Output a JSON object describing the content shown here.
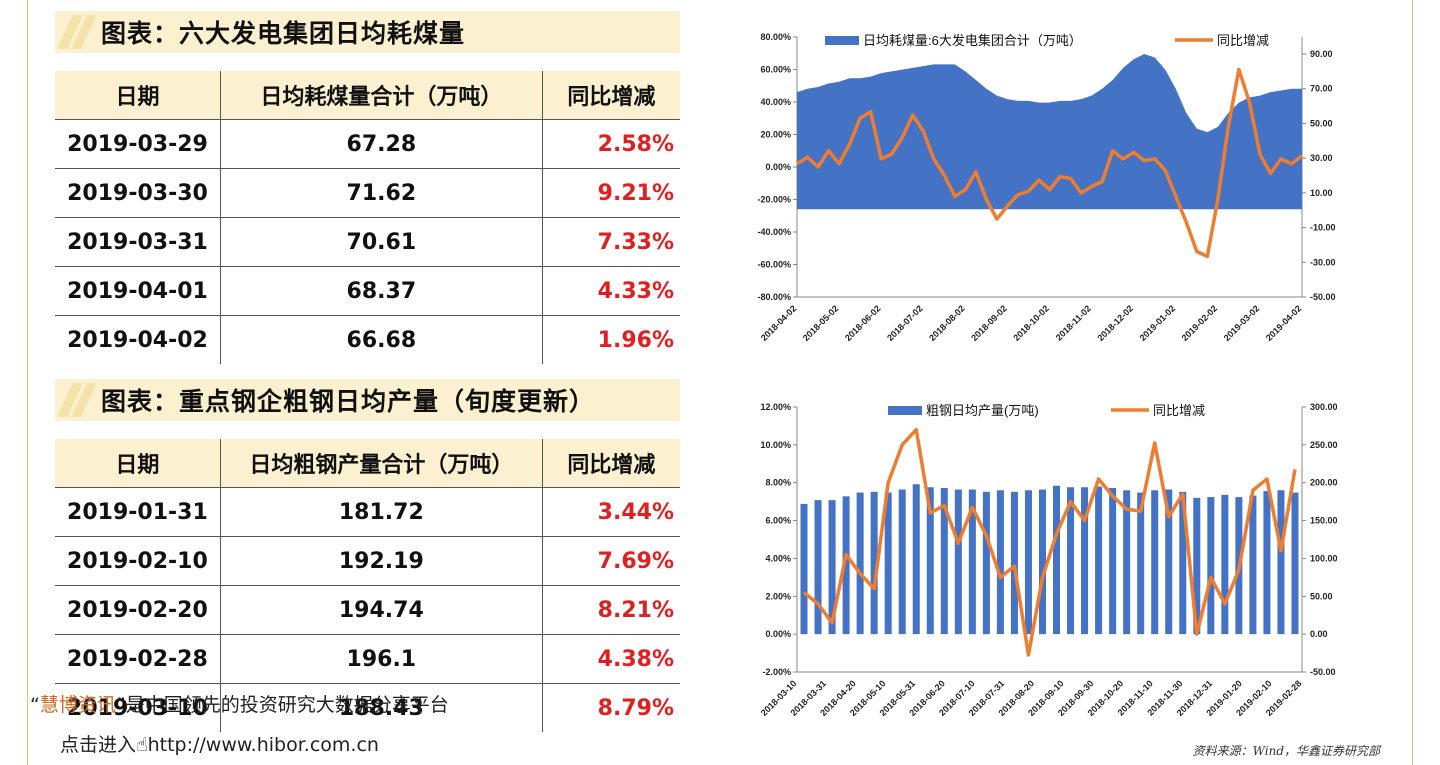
{
  "section1": {
    "title": "图表：六大发电集团日均耗煤量",
    "headers": [
      "日期",
      "日均耗煤量合计（万吨）",
      "同比增减"
    ],
    "rows": [
      [
        "2019-03-29",
        "67.28",
        "2.58%"
      ],
      [
        "2019-03-30",
        "71.62",
        "9.21%"
      ],
      [
        "2019-03-31",
        "70.61",
        "7.33%"
      ],
      [
        "2019-04-01",
        "68.37",
        "4.33%"
      ],
      [
        "2019-04-02",
        "66.68",
        "1.96%"
      ]
    ]
  },
  "section2": {
    "title": "图表：重点钢企粗钢日均产量（旬度更新）",
    "headers": [
      "日期",
      "日均粗钢产量合计（万吨）",
      "同比增减"
    ],
    "rows": [
      [
        "2019-01-31",
        "181.72",
        "3.44%"
      ],
      [
        "2019-02-10",
        "192.19",
        "7.69%"
      ],
      [
        "2019-02-20",
        "194.74",
        "8.21%"
      ],
      [
        "2019-02-28",
        "196.1",
        "4.38%"
      ],
      [
        "2019-03-10",
        "188.43",
        "8.79%"
      ]
    ]
  },
  "footer": {
    "quote_open": "“",
    "brand": "慧博资讯",
    "tagline": "”是中国领先的投资研究大数据分享平台",
    "link_prefix": "点击进入",
    "link": "http://www.hibor.com.cn",
    "source": "资料来源：Wind，华鑫证券研究部"
  },
  "colors": {
    "bar": "#4472c4",
    "line": "#ed7d31",
    "red_text": "#e02020",
    "title_bg": "#fbf0cf"
  },
  "chart_data": [
    {
      "type": "area",
      "legend": [
        "日均耗煤量:6大发电集团合计（万吨）",
        "同比增减"
      ],
      "legend_position": "top",
      "x_ticks": [
        "2018-04-02",
        "2018-05-02",
        "2018-06-02",
        "2018-07-02",
        "2018-08-02",
        "2018-09-02",
        "2018-10-02",
        "2018-11-02",
        "2018-12-02",
        "2019-01-02",
        "2019-02-02",
        "2019-03-02",
        "2019-04-02"
      ],
      "y_left_ticks": [
        "80.00%",
        "60.00%",
        "40.00%",
        "20.00%",
        "0.00%",
        "-20.00%",
        "-40.00%",
        "-60.00%",
        "-80.00%"
      ],
      "y_left_range": [
        -0.8,
        0.8
      ],
      "y_right_ticks": [
        "90.00",
        "70.00",
        "50.00",
        "30.00",
        "10.00",
        "-10.00",
        "-30.00",
        "-50.00"
      ],
      "y_right_range": [
        -50,
        90
      ],
      "series": [
        {
          "name": "日均耗煤量:6大发电集团合计（万吨）",
          "axis": "right",
          "values": [
            68,
            70,
            71,
            73,
            74,
            76,
            76,
            77,
            79,
            80,
            81,
            82,
            83,
            84,
            84,
            84,
            80,
            75,
            70,
            66,
            64,
            63,
            63,
            62,
            62,
            63,
            63,
            64,
            66,
            70,
            75,
            82,
            87,
            90,
            88,
            81,
            70,
            56,
            47,
            45,
            48,
            56,
            62,
            65,
            66,
            68,
            69,
            70,
            70
          ]
        },
        {
          "name": "同比增减",
          "axis": "left",
          "values": [
            0.02,
            0.06,
            0.0,
            0.1,
            0.02,
            0.14,
            0.3,
            0.34,
            0.05,
            0.08,
            0.18,
            0.32,
            0.22,
            0.05,
            -0.05,
            -0.18,
            -0.14,
            -0.03,
            -0.2,
            -0.32,
            -0.24,
            -0.17,
            -0.15,
            -0.08,
            -0.14,
            -0.06,
            -0.07,
            -0.16,
            -0.12,
            -0.09,
            0.1,
            0.05,
            0.09,
            0.04,
            0.05,
            -0.02,
            -0.18,
            -0.34,
            -0.52,
            -0.55,
            -0.2,
            0.25,
            0.6,
            0.4,
            0.08,
            -0.04,
            0.05,
            0.02,
            0.07
          ]
        }
      ]
    },
    {
      "type": "bar",
      "legend": [
        "粗钢日均产量(万吨)",
        "同比增减"
      ],
      "legend_position": "top",
      "x_ticks": [
        "2018-03-10",
        "2018-03-31",
        "2018-04-20",
        "2018-05-10",
        "2018-05-31",
        "2018-06-20",
        "2018-07-10",
        "2018-07-31",
        "2018-08-20",
        "2018-09-10",
        "2018-09-30",
        "2018-10-20",
        "2018-11-10",
        "2018-11-30",
        "2018-12-31",
        "2019-01-20",
        "2019-02-10",
        "2019-02-28"
      ],
      "y_left_ticks": [
        "12.00%",
        "10.00%",
        "8.00%",
        "6.00%",
        "4.00%",
        "2.00%",
        "0.00%",
        "-2.00%"
      ],
      "y_left_range": [
        -0.02,
        0.12
      ],
      "y_right_ticks": [
        "300.00",
        "250.00",
        "200.00",
        "150.00",
        "100.00",
        "50.00",
        "0.00",
        "-50.00"
      ],
      "y_right_range": [
        -50,
        300
      ],
      "series": [
        {
          "name": "粗钢日均产量(万吨)",
          "axis": "right",
          "values": [
            172,
            177,
            177,
            182,
            187,
            188,
            187,
            191,
            198,
            194,
            193,
            191,
            191,
            188,
            190,
            188,
            190,
            191,
            196,
            194,
            194,
            195,
            193,
            190,
            187,
            190,
            191,
            188,
            180,
            181,
            184,
            181,
            183,
            189,
            190,
            187
          ]
        },
        {
          "name": "同比增减",
          "axis": "left",
          "values": [
            0.022,
            0.016,
            0.006,
            0.042,
            0.032,
            0.024,
            0.08,
            0.1,
            0.108,
            0.064,
            0.068,
            0.048,
            0.067,
            0.052,
            0.03,
            0.036,
            -0.011,
            0.03,
            0.053,
            0.07,
            0.06,
            0.082,
            0.073,
            0.066,
            0.065,
            0.101,
            0.062,
            0.074,
            0.0,
            0.03,
            0.016,
            0.034,
            0.076,
            0.082,
            0.044,
            0.087
          ]
        }
      ]
    }
  ]
}
